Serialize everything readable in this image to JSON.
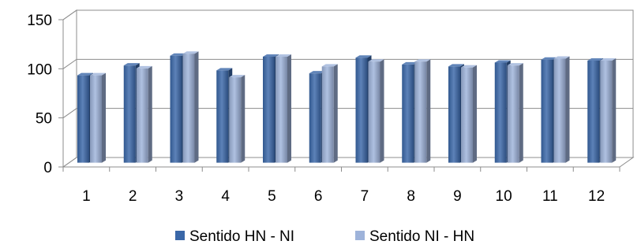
{
  "chart_data": {
    "type": "bar",
    "categories": [
      "1",
      "2",
      "3",
      "4",
      "5",
      "6",
      "7",
      "8",
      "9",
      "10",
      "11",
      "12"
    ],
    "series": [
      {
        "name": "Sentido HN - NI",
        "color": "#3A67A8",
        "values": [
          89,
          99,
          109,
          94,
          108,
          91,
          107,
          100,
          98,
          102,
          105,
          104
        ]
      },
      {
        "name": "Sentido NI - HN",
        "color": "#9EB3DA",
        "values": [
          89,
          96,
          111,
          87,
          108,
          98,
          103,
          103,
          97,
          99,
          106,
          104
        ]
      }
    ],
    "title": "",
    "xlabel": "",
    "ylabel": "",
    "ylim": [
      0,
      150
    ],
    "yticks": [
      0,
      50,
      100,
      150
    ],
    "grid": true,
    "three_d": true,
    "legend_position": "bottom"
  }
}
